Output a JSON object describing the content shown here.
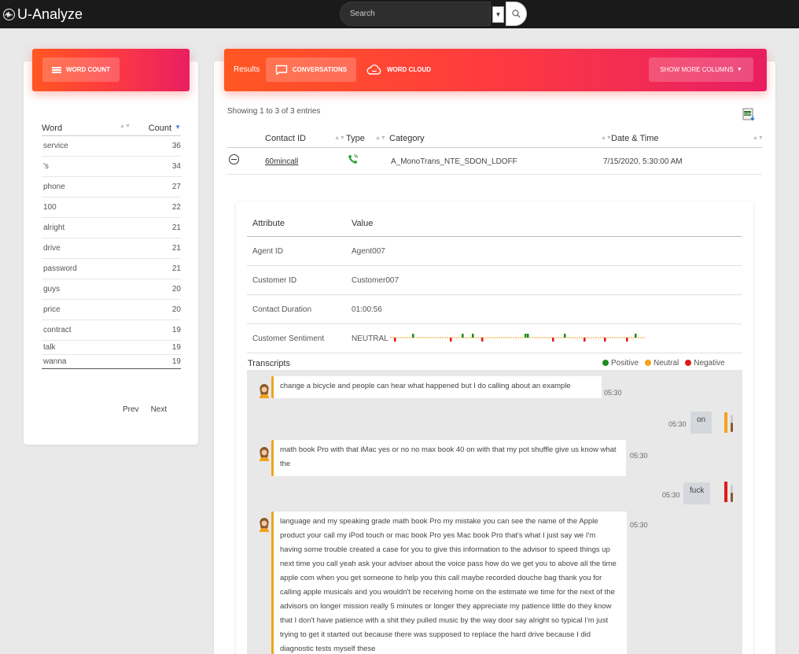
{
  "app": {
    "title": "U-Analyze"
  },
  "search": {
    "placeholder": "Search"
  },
  "word_count": {
    "button": "WORD COUNT",
    "col_word": "Word",
    "col_count": "Count",
    "rows": [
      {
        "word": "service",
        "count": "36"
      },
      {
        "word": "'s",
        "count": "34"
      },
      {
        "word": "phone",
        "count": "27"
      },
      {
        "word": "100",
        "count": "22"
      },
      {
        "word": "alright",
        "count": "21"
      },
      {
        "word": "drive",
        "count": "21"
      },
      {
        "word": "password",
        "count": "21"
      },
      {
        "word": "guys",
        "count": "20"
      },
      {
        "word": "price",
        "count": "20"
      },
      {
        "word": "contract",
        "count": "19"
      },
      {
        "word": "talk",
        "count": "19"
      },
      {
        "word": "wanna",
        "count": "19"
      }
    ],
    "prev": "Prev",
    "next": "Next"
  },
  "results": {
    "label": "Results",
    "conversations": "CONVERSATIONS",
    "word_cloud": "WORD CLOUD",
    "more_columns": "SHOW MORE COLUMNS",
    "showing": "Showing 1 to 3 of 3 entries",
    "columns": {
      "contact_id": "Contact ID",
      "type": "Type",
      "category": "Category",
      "date": "Date & Time"
    },
    "row": {
      "contact_id": "60mincall",
      "category": "A_MonoTrans_NTE_SDON_LDOFF",
      "date": "7/15/2020, 5:30:00 AM"
    }
  },
  "details": {
    "head_attr": "Attribute",
    "head_value": "Value",
    "rows": [
      {
        "attr": "Agent ID",
        "value": "Agent007"
      },
      {
        "attr": "Customer ID",
        "value": "Customer007"
      },
      {
        "attr": "Contact Duration",
        "value": "01:00:56"
      },
      {
        "attr": "Customer Sentiment",
        "value": "NEUTRAL"
      }
    ]
  },
  "transcripts": {
    "label": "Transcripts",
    "legend": {
      "positive": "Positive",
      "neutral": "Neutral",
      "negative": "Negative"
    },
    "colors": {
      "positive": "#1e8e1e",
      "neutral": "#f4a21c",
      "negative": "#e01b1b"
    },
    "messages": [
      {
        "text": "change a bicycle and people can hear what happened but I do calling about an example",
        "time": "05:30"
      },
      {
        "text": "on",
        "time": "05:30"
      },
      {
        "text": "math book Pro with that iMac yes or no no max book 40 on with that my pot shuffle give us know what the",
        "time": "05:30"
      },
      {
        "text": "fuck",
        "time": "05:30"
      },
      {
        "text": "language and my speaking grade math book Pro my mistake you can see the name of the Apple product your call my iPod touch or mac book Pro yes Mac book Pro that's what I just say we I'm having some trouble created a case for you to give this information to the advisor to speed things up next time you call yeah ask your adviser about the voice pass how do we get you to above all the time apple com when you get someone to help you this call maybe recorded douche bag thank you for calling apple musicals and you wouldn't be receiving home on the estimate we time for the next of the advisors on longer mission really 5 minutes or longer they appreciate my patience little do they know that I don't have patience with a shit they pulled music by the way door say alright so typical I'm just trying to get it started out because there was supposed to replace the hard drive because I did diagnostic tests myself these",
        "time": "05:30"
      }
    ]
  }
}
